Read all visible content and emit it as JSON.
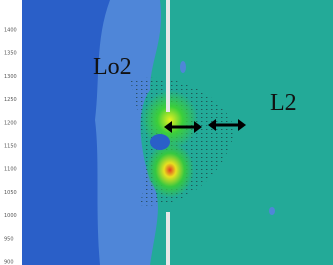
{
  "axis": {
    "yticks": [
      "1400",
      "1350",
      "1300",
      "1250",
      "1200",
      "1150",
      "1100",
      "1050",
      "1000",
      "950",
      "900"
    ]
  },
  "labels": {
    "left": "Lo2",
    "right": "L2"
  }
}
